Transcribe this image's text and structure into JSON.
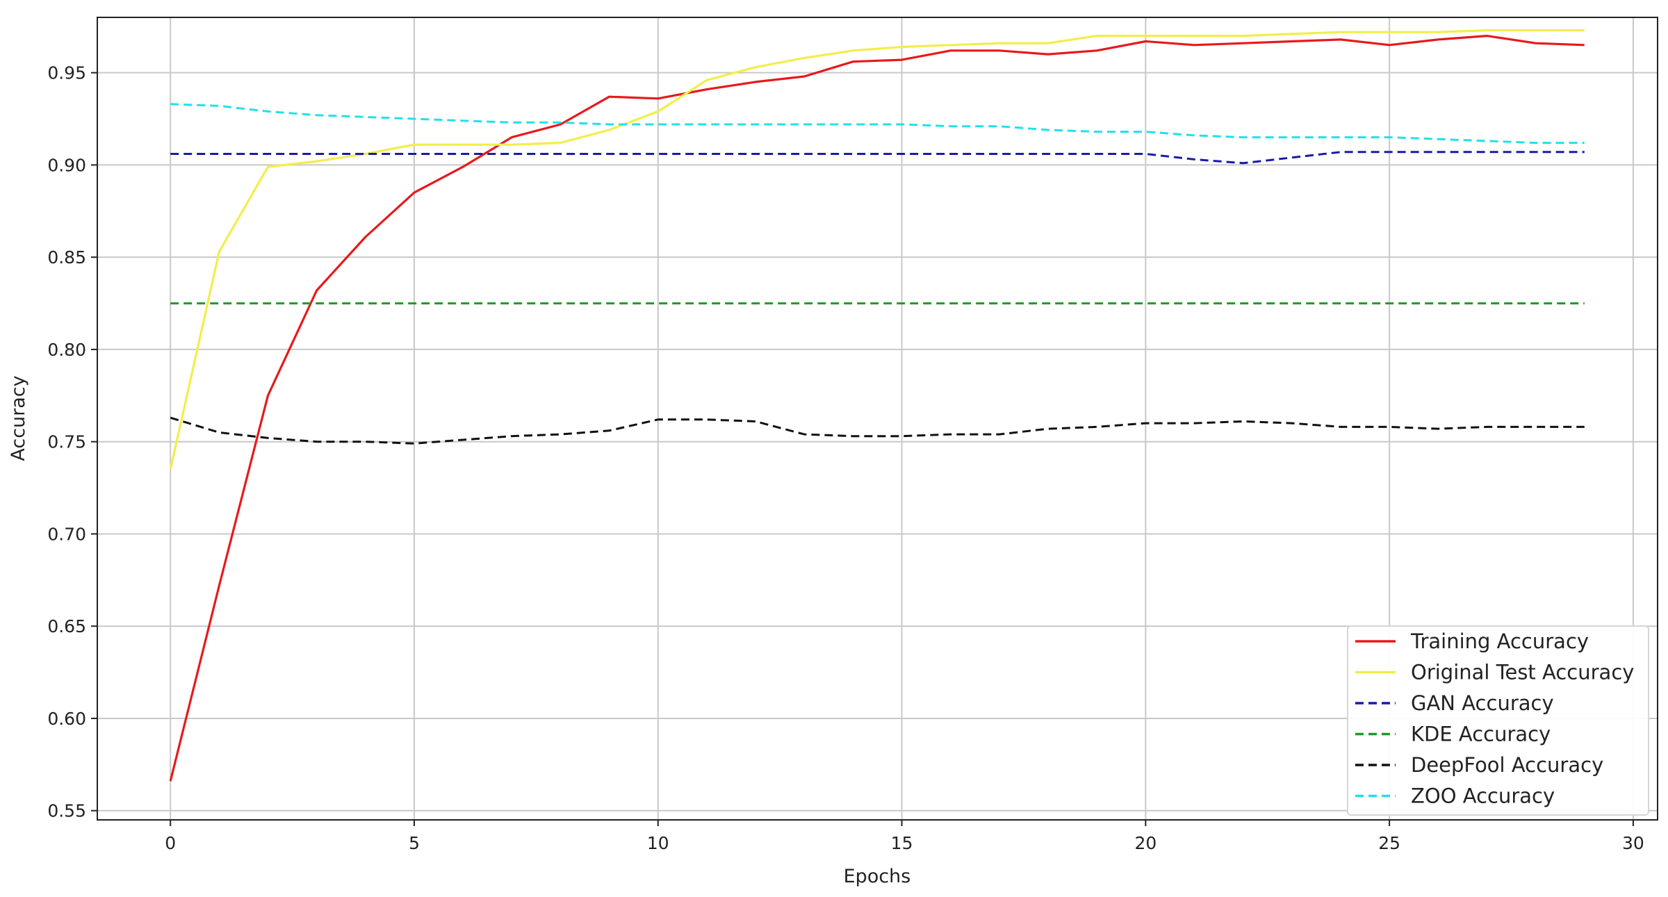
{
  "chart_data": {
    "type": "line",
    "title": "",
    "xlabel": "Epochs",
    "ylabel": "Accuracy",
    "xlim": [
      -1.5,
      30.5
    ],
    "ylim": [
      0.545,
      0.98
    ],
    "xticks": [
      0,
      5,
      10,
      15,
      20,
      25,
      30
    ],
    "xtick_labels": [
      "0",
      "5",
      "10",
      "15",
      "20",
      "25",
      "30"
    ],
    "yticks": [
      0.55,
      0.6,
      0.65,
      0.7,
      0.75,
      0.8,
      0.85,
      0.9,
      0.95
    ],
    "ytick_labels": [
      "0.55",
      "0.60",
      "0.65",
      "0.70",
      "0.75",
      "0.80",
      "0.85",
      "0.90",
      "0.95"
    ],
    "grid": true,
    "legend_position": "bottom-right",
    "x": [
      0,
      1,
      2,
      3,
      4,
      5,
      6,
      7,
      8,
      9,
      10,
      11,
      12,
      13,
      14,
      15,
      16,
      17,
      18,
      19,
      20,
      21,
      22,
      23,
      24,
      25,
      26,
      27,
      28,
      29
    ],
    "series": [
      {
        "name": "Training Accuracy",
        "color": "#e8191b",
        "style": "solid",
        "values": [
          0.566,
          0.672,
          0.775,
          0.832,
          0.861,
          0.885,
          0.899,
          0.915,
          0.922,
          0.937,
          0.936,
          0.941,
          0.945,
          0.948,
          0.956,
          0.957,
          0.962,
          0.962,
          0.96,
          0.962,
          0.967,
          0.965,
          0.966,
          0.967,
          0.968,
          0.965,
          0.968,
          0.97,
          0.966,
          0.965
        ]
      },
      {
        "name": "Original Test Accuracy",
        "color": "#f2ee4a",
        "style": "solid",
        "values": [
          0.735,
          0.853,
          0.899,
          0.902,
          0.906,
          0.911,
          0.911,
          0.911,
          0.912,
          0.919,
          0.929,
          0.946,
          0.953,
          0.958,
          0.962,
          0.964,
          0.965,
          0.966,
          0.966,
          0.97,
          0.97,
          0.97,
          0.97,
          0.971,
          0.972,
          0.972,
          0.972,
          0.973,
          0.973,
          0.973
        ]
      },
      {
        "name": "GAN Accuracy",
        "color": "#1a1aa8",
        "style": "dashed",
        "values": [
          0.906,
          0.906,
          0.906,
          0.906,
          0.906,
          0.906,
          0.906,
          0.906,
          0.906,
          0.906,
          0.906,
          0.906,
          0.906,
          0.906,
          0.906,
          0.906,
          0.906,
          0.906,
          0.906,
          0.906,
          0.906,
          0.903,
          0.901,
          0.904,
          0.907,
          0.907,
          0.907,
          0.907,
          0.907,
          0.907
        ]
      },
      {
        "name": "KDE Accuracy",
        "color": "#1e9a2a",
        "style": "dashed",
        "values": [
          0.825,
          0.825,
          0.825,
          0.825,
          0.825,
          0.825,
          0.825,
          0.825,
          0.825,
          0.825,
          0.825,
          0.825,
          0.825,
          0.825,
          0.825,
          0.825,
          0.825,
          0.825,
          0.825,
          0.825,
          0.825,
          0.825,
          0.825,
          0.825,
          0.825,
          0.825,
          0.825,
          0.825,
          0.825,
          0.825
        ]
      },
      {
        "name": "DeepFool Accuracy",
        "color": "#111111",
        "style": "dashed",
        "values": [
          0.763,
          0.755,
          0.752,
          0.75,
          0.75,
          0.749,
          0.751,
          0.753,
          0.754,
          0.756,
          0.762,
          0.762,
          0.761,
          0.754,
          0.753,
          0.753,
          0.754,
          0.754,
          0.757,
          0.758,
          0.76,
          0.76,
          0.761,
          0.76,
          0.758,
          0.758,
          0.757,
          0.758,
          0.758,
          0.758
        ]
      },
      {
        "name": "ZOO Accuracy",
        "color": "#22e0ea",
        "style": "dashed",
        "values": [
          0.933,
          0.932,
          0.929,
          0.927,
          0.926,
          0.925,
          0.924,
          0.923,
          0.923,
          0.922,
          0.922,
          0.922,
          0.922,
          0.922,
          0.922,
          0.922,
          0.921,
          0.921,
          0.919,
          0.918,
          0.918,
          0.916,
          0.915,
          0.915,
          0.915,
          0.915,
          0.914,
          0.913,
          0.912,
          0.912
        ]
      }
    ]
  }
}
